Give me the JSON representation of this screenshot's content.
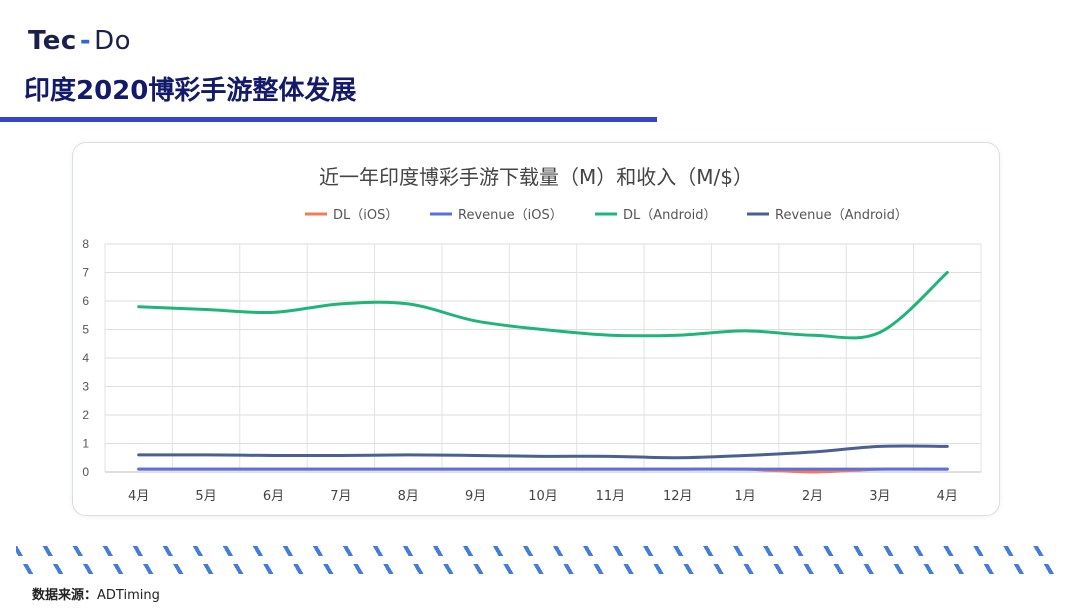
{
  "header": {
    "logo_left": "Tec",
    "logo_dash": "-",
    "logo_right": "Do",
    "title": "印度2020博彩手游整体发展"
  },
  "colors": {
    "dl_ios": "#f07a5a",
    "revenue_ios": "#5a6fe0",
    "dl_android": "#1fb57a",
    "revenue_android": "#4a5f94",
    "title_bar": "#3544c9",
    "stripes": "#2f6fd8"
  },
  "chart_data": {
    "type": "line",
    "title": "近一年印度博彩手游下载量（M）和收入（M/$）",
    "categories": [
      "4月",
      "5月",
      "6月",
      "7月",
      "8月",
      "9月",
      "10月",
      "11月",
      "12月",
      "1月",
      "2月",
      "3月",
      "4月"
    ],
    "ylim": [
      0,
      8
    ],
    "yticks": [
      "0",
      "1",
      "2",
      "3",
      "4",
      "5",
      "6",
      "7",
      "8"
    ],
    "grid": true,
    "smooth": true,
    "legend_position": "top",
    "series": [
      {
        "name": "DL（iOS）",
        "color": "#f07a5a",
        "values": [
          0.1,
          0.1,
          0.1,
          0.1,
          0.1,
          0.1,
          0.1,
          0.1,
          0.1,
          0.1,
          0.0,
          0.1,
          0.1
        ]
      },
      {
        "name": "Revenue（iOS）",
        "color": "#5a6fe0",
        "values": [
          0.1,
          0.1,
          0.1,
          0.1,
          0.1,
          0.1,
          0.1,
          0.1,
          0.1,
          0.1,
          0.1,
          0.1,
          0.1
        ]
      },
      {
        "name": "DL（Android）",
        "color": "#1fb57a",
        "values": [
          5.8,
          5.7,
          5.6,
          5.9,
          5.9,
          5.3,
          5.0,
          4.8,
          4.8,
          4.95,
          4.8,
          4.9,
          7.0
        ]
      },
      {
        "name": "Revenue（Android）",
        "color": "#4a5f94",
        "values": [
          0.6,
          0.6,
          0.58,
          0.58,
          0.6,
          0.58,
          0.55,
          0.55,
          0.5,
          0.58,
          0.7,
          0.9,
          0.9
        ]
      }
    ]
  },
  "footer": {
    "source_label": "数据来源：",
    "source_value": "ADTiming"
  }
}
